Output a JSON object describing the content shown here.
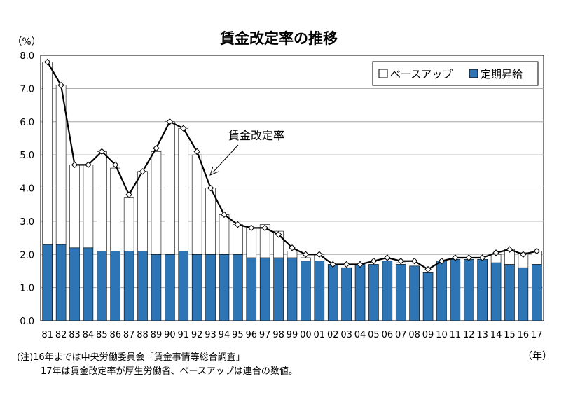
{
  "chart_data": {
    "type": "bar",
    "title": "賃金改定率の推移",
    "y_unit_label": "（%）",
    "x_unit_label": "（年）",
    "ylim": [
      0,
      8
    ],
    "yticks": [
      "0.0",
      "1.0",
      "2.0",
      "3.0",
      "4.0",
      "5.0",
      "6.0",
      "7.0",
      "8.0"
    ],
    "grid": true,
    "legend_position": "top-right",
    "categories": [
      "81",
      "82",
      "83",
      "84",
      "85",
      "86",
      "87",
      "88",
      "89",
      "90",
      "91",
      "92",
      "93",
      "94",
      "95",
      "96",
      "97",
      "98",
      "99",
      "00",
      "01",
      "02",
      "03",
      "04",
      "05",
      "06",
      "07",
      "08",
      "09",
      "10",
      "11",
      "12",
      "13",
      "14",
      "15",
      "16",
      "17"
    ],
    "series": [
      {
        "name": "ベースアップ",
        "kind": "stacked-bar-top",
        "color": "#ffffff",
        "values": [
          5.5,
          4.8,
          2.5,
          2.5,
          3.0,
          2.5,
          1.6,
          2.4,
          3.1,
          4.0,
          3.7,
          3.0,
          2.0,
          1.2,
          0.9,
          0.9,
          1.0,
          0.8,
          0.2,
          0.1,
          0.2,
          0.0,
          0.0,
          0.0,
          0.0,
          0.0,
          0.05,
          0.0,
          0.0,
          0.0,
          0.0,
          0.0,
          0.0,
          0.25,
          0.45,
          0.45,
          0.4
        ]
      },
      {
        "name": "定期昇給",
        "kind": "stacked-bar-bottom",
        "color": "#2e75b6",
        "values": [
          2.3,
          2.3,
          2.2,
          2.2,
          2.1,
          2.1,
          2.1,
          2.1,
          2.0,
          2.0,
          2.1,
          2.0,
          2.0,
          2.0,
          2.0,
          1.9,
          1.9,
          1.9,
          1.9,
          1.8,
          1.8,
          1.7,
          1.6,
          1.7,
          1.7,
          1.8,
          1.7,
          1.65,
          1.45,
          1.8,
          1.85,
          1.85,
          1.85,
          1.75,
          1.7,
          1.6,
          1.7
        ]
      },
      {
        "name": "賃金改定率",
        "kind": "line",
        "color": "#000000",
        "values": [
          7.8,
          7.1,
          4.7,
          4.7,
          5.1,
          4.7,
          3.8,
          4.5,
          5.2,
          6.0,
          5.8,
          5.1,
          4.0,
          3.2,
          2.9,
          2.8,
          2.8,
          2.6,
          2.2,
          2.0,
          2.0,
          1.7,
          1.7,
          1.7,
          1.8,
          1.9,
          1.8,
          1.8,
          1.55,
          1.8,
          1.9,
          1.9,
          1.9,
          2.05,
          2.15,
          2.0,
          2.1
        ]
      }
    ],
    "annotation": {
      "text": "賃金改定率"
    }
  },
  "notes": {
    "line1": "(注)16年までは中央労働委員会「賃金事情等総合調査」",
    "line2": "17年は賃金改定率が厚生労働省、ベースアップは連合の数値。"
  }
}
